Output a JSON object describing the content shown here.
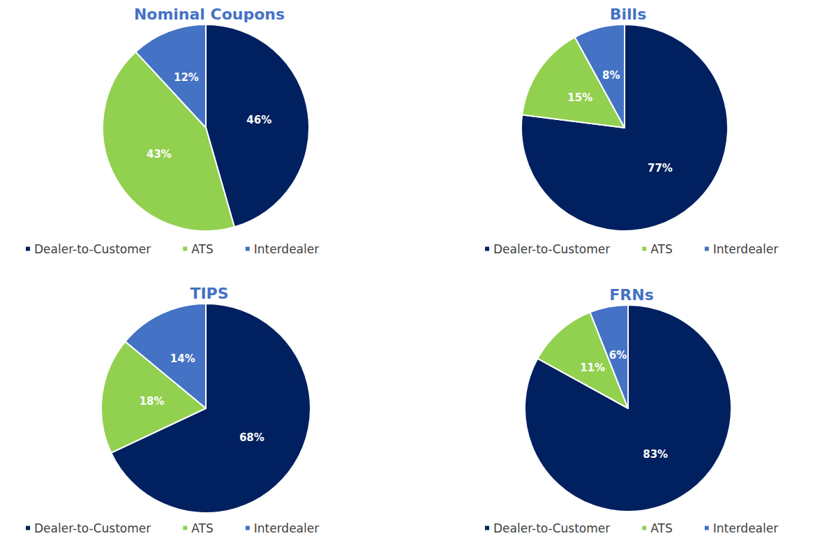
{
  "chart_data": [
    {
      "type": "pie",
      "title": "Nominal Coupons",
      "categories": [
        "Dealer-to-Customer",
        "ATS",
        "Interdealer"
      ],
      "values": [
        46,
        43,
        12
      ],
      "value_labels": [
        "46%",
        "43%",
        "12%"
      ],
      "colors": [
        "#002060",
        "#92d050",
        "#4472c4"
      ],
      "data_labels": true,
      "legend": "bottom"
    },
    {
      "type": "pie",
      "title": "Bills",
      "categories": [
        "Dealer-to-Customer",
        "ATS",
        "Interdealer"
      ],
      "values": [
        77,
        15,
        8
      ],
      "value_labels": [
        "77%",
        "15%",
        "8%"
      ],
      "colors": [
        "#002060",
        "#92d050",
        "#4472c4"
      ],
      "data_labels": true,
      "legend": "bottom"
    },
    {
      "type": "pie",
      "title": "TIPS",
      "categories": [
        "Dealer-to-Customer",
        "ATS",
        "Interdealer"
      ],
      "values": [
        68,
        18,
        14
      ],
      "value_labels": [
        "68%",
        "18%",
        "14%"
      ],
      "colors": [
        "#002060",
        "#92d050",
        "#4472c4"
      ],
      "data_labels": true,
      "legend": "bottom"
    },
    {
      "type": "pie",
      "title": "FRNs",
      "categories": [
        "Dealer-to-Customer",
        "ATS",
        "Interdealer"
      ],
      "values": [
        83,
        11,
        6
      ],
      "value_labels": [
        "83%",
        "11%",
        "6%"
      ],
      "colors": [
        "#002060",
        "#92d050",
        "#4472c4"
      ],
      "data_labels": true,
      "legend": "bottom"
    }
  ]
}
